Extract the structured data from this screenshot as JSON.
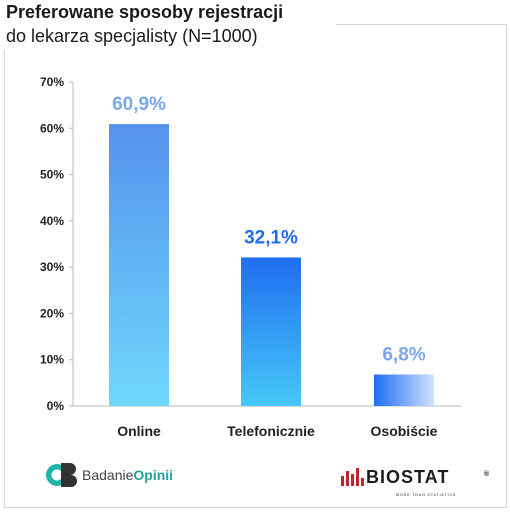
{
  "title": "Preferowane sposoby rejestracji",
  "subtitle": "do lekarza specjalisty (N=1000)",
  "chart_data": {
    "type": "bar",
    "title": "Preferowane sposoby rejestracji",
    "subtitle": "do lekarza specjalisty (N=1000)",
    "categories": [
      "Online",
      "Telefonicznie",
      "Osobiście"
    ],
    "values": [
      60.9,
      32.1,
      6.8
    ],
    "data_labels": [
      "60,9%",
      "32,1%",
      "6,8%"
    ],
    "ylim": [
      0,
      70
    ],
    "yticks": [
      0,
      10,
      20,
      30,
      40,
      50,
      60,
      70
    ],
    "ytick_labels": [
      "0%",
      "10%",
      "20%",
      "30%",
      "40%",
      "50%",
      "60%",
      "70%"
    ],
    "grid": false,
    "colors": {
      "label_light": "#7aa8ea",
      "label_dark": "#1f6ee8",
      "bar1_top": "#5592ee",
      "bar1_bottom": "#6fd7fb",
      "bar2_top": "#1f6ef0",
      "bar2_bottom": "#46c8f8",
      "bar3_left": "#1f6ef0",
      "bar3_right": "#cfe3ff"
    }
  },
  "footer": {
    "left_brand_prefix": "Badanie",
    "left_brand_bold": "Opinii",
    "left_logo_icon": "cb-logo-icon",
    "right_brand": "BIOSTAT",
    "right_tagline": "MORE THAN STATISTICS",
    "right_reg": "®"
  }
}
